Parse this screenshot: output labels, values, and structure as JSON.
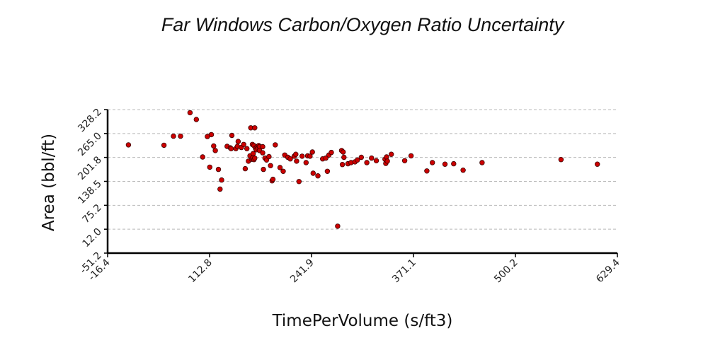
{
  "chart_data": {
    "type": "scatter",
    "title": "Far Windows Carbon/Oxygen Ratio Uncertainty",
    "xlabel": "TimePerVolume (s/ft3)",
    "ylabel": "Area (bbl/ft)",
    "xlim": [
      -16.4,
      629.4
    ],
    "ylim": [
      -51.2,
      328.2
    ],
    "xticks": [
      "-16.4",
      "112.8",
      "241.9",
      "371.1",
      "500.2",
      "629.4"
    ],
    "yticks": [
      "-51.2",
      "12.0",
      "75.2",
      "138.5",
      "201.8",
      "265.0",
      "328.2"
    ],
    "grid": "horizontal-dashed",
    "legend": "none",
    "point_color": "#cc0000",
    "points": [
      [
        10,
        235
      ],
      [
        55,
        234
      ],
      [
        67,
        258
      ],
      [
        76,
        258
      ],
      [
        88,
        320
      ],
      [
        96,
        302
      ],
      [
        104,
        203
      ],
      [
        110,
        257
      ],
      [
        115,
        262
      ],
      [
        118,
        232
      ],
      [
        120,
        220
      ],
      [
        124,
        170
      ],
      [
        126,
        118
      ],
      [
        128,
        142
      ],
      [
        113,
        176
      ],
      [
        135,
        231
      ],
      [
        139,
        227
      ],
      [
        140,
        225
      ],
      [
        141,
        260
      ],
      [
        146,
        225
      ],
      [
        148,
        231
      ],
      [
        149,
        244
      ],
      [
        153,
        228
      ],
      [
        156,
        236
      ],
      [
        158,
        172
      ],
      [
        160,
        225
      ],
      [
        162,
        192
      ],
      [
        164,
        206
      ],
      [
        165,
        280
      ],
      [
        166,
        197
      ],
      [
        167,
        200
      ],
      [
        167,
        236
      ],
      [
        168,
        212
      ],
      [
        169,
        196
      ],
      [
        169,
        233
      ],
      [
        170,
        280
      ],
      [
        170,
        200
      ],
      [
        171,
        226
      ],
      [
        172,
        222
      ],
      [
        173,
        230
      ],
      [
        174,
        226
      ],
      [
        175,
        233
      ],
      [
        176,
        230
      ],
      [
        176,
        220
      ],
      [
        180,
        230
      ],
      [
        180,
        214
      ],
      [
        181,
        170
      ],
      [
        183,
        200
      ],
      [
        185,
        195
      ],
      [
        188,
        204
      ],
      [
        190,
        180
      ],
      [
        192,
        140
      ],
      [
        193,
        144
      ],
      [
        196,
        235
      ],
      [
        202,
        175
      ],
      [
        206,
        165
      ],
      [
        208,
        208
      ],
      [
        212,
        202
      ],
      [
        215,
        198
      ],
      [
        220,
        205
      ],
      [
        222,
        210
      ],
      [
        223,
        192
      ],
      [
        226,
        138
      ],
      [
        230,
        205
      ],
      [
        235,
        188
      ],
      [
        237,
        206
      ],
      [
        240,
        205
      ],
      [
        243,
        216
      ],
      [
        244,
        160
      ],
      [
        250,
        153
      ],
      [
        256,
        198
      ],
      [
        260,
        200
      ],
      [
        262,
        165
      ],
      [
        264,
        208
      ],
      [
        267,
        215
      ],
      [
        275,
        20
      ],
      [
        280,
        220
      ],
      [
        281,
        183
      ],
      [
        282,
        216
      ],
      [
        283,
        202
      ],
      [
        288,
        185
      ],
      [
        292,
        188
      ],
      [
        297,
        190
      ],
      [
        300,
        195
      ],
      [
        305,
        202
      ],
      [
        312,
        188
      ],
      [
        318,
        200
      ],
      [
        324,
        193
      ],
      [
        335,
        197
      ],
      [
        336,
        186
      ],
      [
        337,
        203
      ],
      [
        338,
        192
      ],
      [
        343,
        210
      ],
      [
        360,
        193
      ],
      [
        368,
        206
      ],
      [
        388,
        166
      ],
      [
        395,
        188
      ],
      [
        411,
        184
      ],
      [
        422,
        185
      ],
      [
        434,
        168
      ],
      [
        458,
        188
      ],
      [
        558,
        196
      ],
      [
        604,
        184
      ]
    ]
  }
}
